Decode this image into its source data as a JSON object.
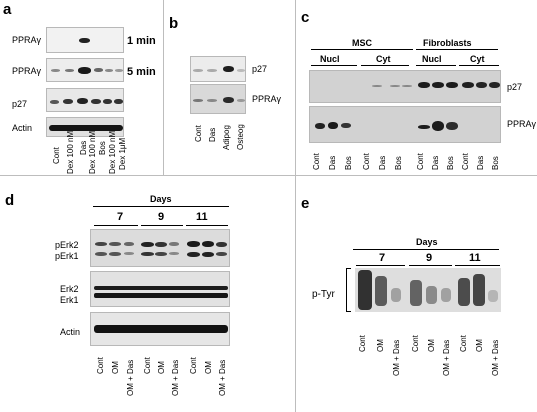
{
  "panels": {
    "a": {
      "label": "a",
      "rows": [
        "PPRAγ",
        "PPRAγ",
        "p27",
        "Actin"
      ],
      "times": [
        "1 min",
        "5 min"
      ],
      "lanes": [
        "Cont",
        "Dex 100 nM",
        "Dex 100 nM",
        "Dex 1μM"
      ],
      "lane_subs": [
        "Das",
        "Bos",
        "Dex 100 nM"
      ]
    },
    "b": {
      "label": "b",
      "rows": [
        "p27",
        "PPRAγ"
      ],
      "lanes": [
        "Cont",
        "Das",
        "Adipog",
        "Osteog"
      ]
    },
    "c": {
      "label": "c",
      "groups": [
        "MSC",
        "Fibroblasts"
      ],
      "subgroups": [
        "Nucl",
        "Cyt",
        "Nucl",
        "Cyt"
      ],
      "rows": [
        "p27",
        "PPRAγ"
      ],
      "lanes": [
        "Cont",
        "Das",
        "Bos",
        "Cont",
        "Das",
        "Bos",
        "Cont",
        "Das",
        "Bos",
        "Cont",
        "Das",
        "Bos"
      ]
    },
    "d": {
      "label": "d",
      "days_title": "Days",
      "days": [
        "7",
        "9",
        "11"
      ],
      "rows": [
        "pErk2",
        "pErk1",
        "Erk2",
        "Erk1",
        "Actin"
      ],
      "lanes": [
        "Cont",
        "OM",
        "OM + Das",
        "Cont",
        "OM",
        "OM + Das",
        "Cont",
        "OM",
        "OM + Das"
      ]
    },
    "e": {
      "label": "e",
      "days_title": "Days",
      "days": [
        "7",
        "9",
        "11"
      ],
      "rows": [
        "p-Tyr"
      ],
      "lanes": [
        "Cont",
        "OM",
        "OM + Das",
        "Cont",
        "OM",
        "OM + Das",
        "Cont",
        "OM",
        "OM + Das"
      ]
    }
  }
}
